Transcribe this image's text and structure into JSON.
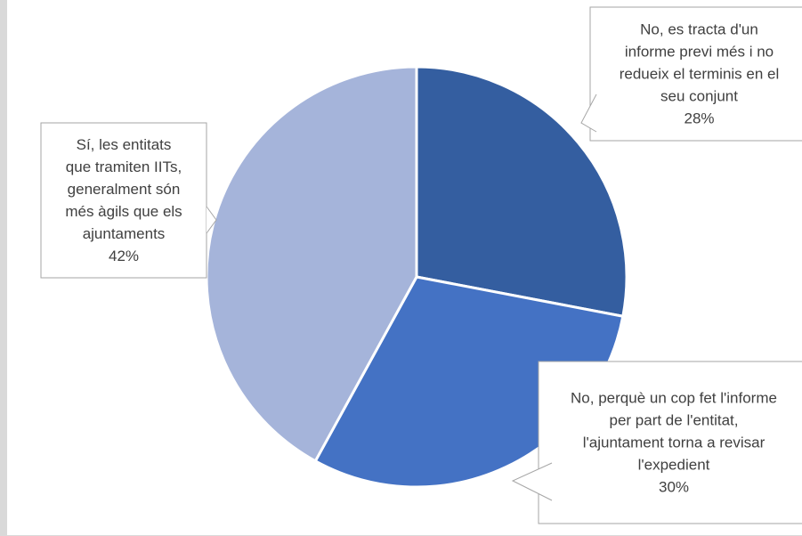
{
  "chart_data": {
    "type": "pie",
    "title": "",
    "slices": [
      {
        "label_lines": [
          "No, es tracta d'un",
          "informe previ més i no",
          "redueix el terminis en el",
          "seu conjunt"
        ],
        "value": 28,
        "value_label": "28%",
        "color": "#345ea0"
      },
      {
        "label_lines": [
          "No, perquè un cop fet l'informe",
          "per part de l'entitat,",
          "l'ajuntament torna a revisar",
          "l'expedient"
        ],
        "value": 30,
        "value_label": "30%",
        "color": "#4472c4"
      },
      {
        "label_lines": [
          "Sí, les entitats",
          "que tramiten IITs,",
          "generalment són",
          "més àgils que els",
          "ajuntaments"
        ],
        "value": 42,
        "value_label": "42%",
        "color": "#a5b4da"
      }
    ],
    "start_angle_deg": 0,
    "direction": "clockwise",
    "legend": "none",
    "data_labels": "callouts"
  }
}
